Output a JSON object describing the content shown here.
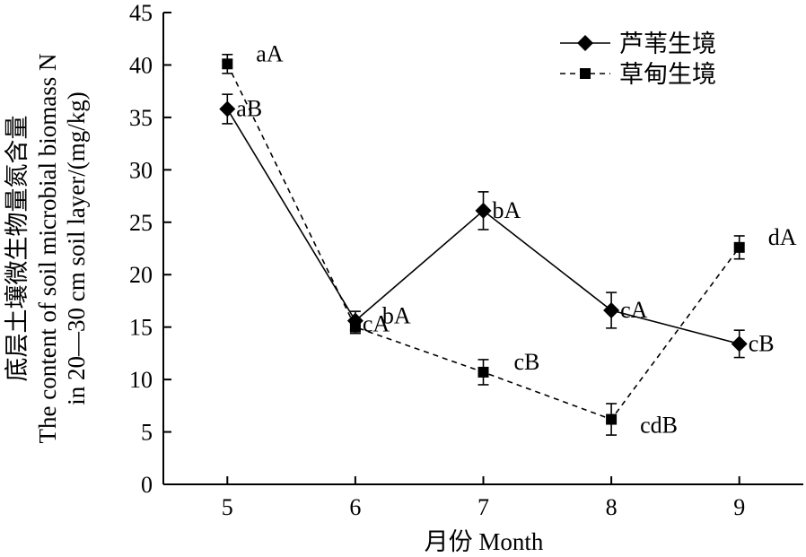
{
  "chart_data": {
    "type": "line",
    "x": [
      5,
      6,
      7,
      8,
      9
    ],
    "xlabel": "月份 Month",
    "ylabel_lines": [
      "底层土壤微生物量氮含量",
      "The content of soil microbial biomass N",
      "in 20—30 cm soil layer/(mg/kg)"
    ],
    "xlim": [
      4.5,
      9.5
    ],
    "ylim": [
      0,
      45
    ],
    "yticks": [
      0,
      5,
      10,
      15,
      20,
      25,
      30,
      35,
      40,
      45
    ],
    "xticks": [
      5,
      6,
      7,
      8,
      9
    ],
    "grid": false,
    "legend_position": "top-right",
    "series": [
      {
        "name": "芦苇生境",
        "values": [
          35.8,
          15.6,
          26.1,
          16.6,
          13.4
        ],
        "errors": [
          1.4,
          0.9,
          1.8,
          1.7,
          1.3
        ],
        "labels": [
          "aB",
          "cA",
          "bA",
          "cA",
          "cB"
        ],
        "marker": "diamond",
        "line": "solid"
      },
      {
        "name": "草甸生境",
        "values": [
          40.1,
          15.0,
          10.7,
          6.2,
          22.6
        ],
        "errors": [
          0.9,
          0.6,
          1.2,
          1.5,
          1.1
        ],
        "labels": [
          "aA",
          "bA",
          "cB",
          "cdB",
          "dA"
        ],
        "marker": "square",
        "line": "dashed"
      }
    ]
  }
}
